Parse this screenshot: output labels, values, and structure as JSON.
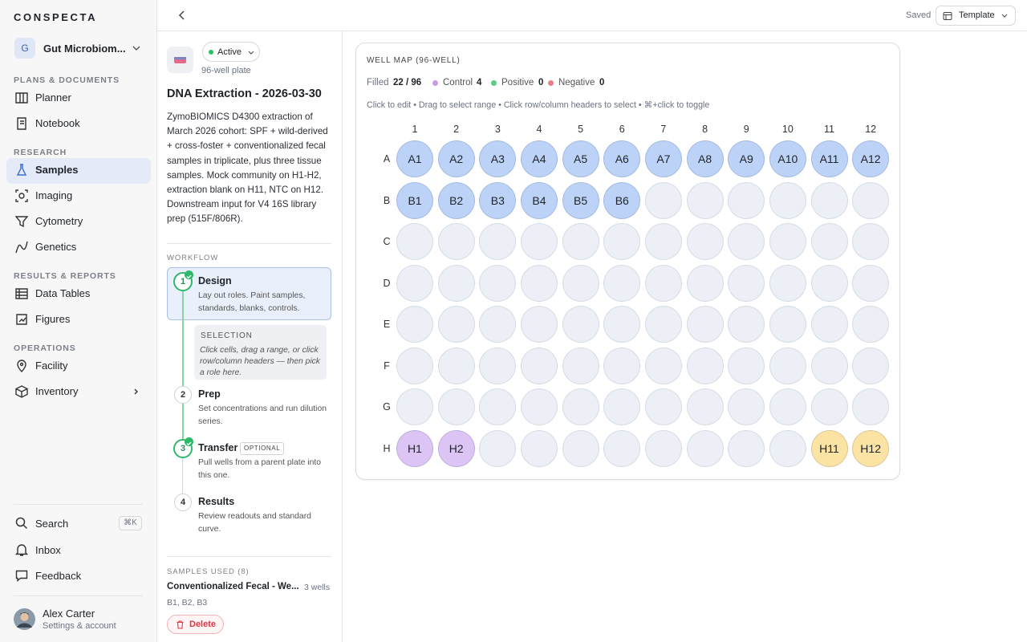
{
  "brand": "CONSPECTA",
  "workspace": {
    "initial": "G",
    "name": "Gut Microbiom..."
  },
  "nav": [
    {
      "title": "PLANS & DOCUMENTS",
      "items": [
        "Planner",
        "Notebook"
      ]
    },
    {
      "title": "RESEARCH",
      "items": [
        "Samples",
        "Imaging",
        "Cytometry",
        "Genetics"
      ]
    },
    {
      "title": "RESULTS & REPORTS",
      "items": [
        "Data Tables",
        "Figures"
      ]
    },
    {
      "title": "OPERATIONS",
      "items": [
        "Facility",
        "Inventory"
      ]
    }
  ],
  "utility": {
    "search": "Search",
    "shortcut": "⌘K",
    "inbox": "Inbox",
    "feedback": "Feedback"
  },
  "user": {
    "name": "Alex Carter",
    "subtitle": "Settings & account"
  },
  "topbar": {
    "status": "Saved",
    "template": "Template"
  },
  "experiment": {
    "status": "Active",
    "plate_type": "96-well plate",
    "title": "DNA Extraction - 2026-03-30",
    "description": "ZymoBIOMICS D4300 extraction of March 2026 cohort: SPF + wild-derived + cross-foster + conventionalized fecal samples in triplicate, plus three tissue samples. Mock community on H1-H2, extraction blank on H11, NTC on H12. Downstream input for V4 16S library prep (515F/806R).",
    "workflow_label": "WORKFLOW",
    "steps": [
      {
        "number": 1,
        "title": "Design",
        "description": "Lay out roles. Paint samples, standards, blanks, controls.",
        "done": true
      },
      {
        "number": 2,
        "title": "Prep",
        "description": "Set concentrations and run dilution series.",
        "done": false
      },
      {
        "number": 3,
        "title": "Transfer",
        "tag": "OPTIONAL",
        "description": "Pull wells from a parent plate into this one.",
        "done": true
      },
      {
        "number": 4,
        "title": "Results",
        "description": "Review readouts and standard curve.",
        "done": false
      }
    ],
    "selection": {
      "title": "SELECTION",
      "text": "Click cells, drag a range, or click row/column headers — then pick a role here."
    },
    "samples_label": "SAMPLES USED (8)",
    "samples": [
      {
        "name": "Conventionalized Fecal - We...",
        "wells_count": "3 wells",
        "wells": "B1, B2, B3"
      }
    ],
    "delete": "Delete"
  },
  "well_map": {
    "title": "WELL MAP (96-WELL)",
    "filled_label": "Filled",
    "filled": "22 / 96",
    "legend": [
      {
        "label": "Control",
        "count": 4,
        "color": "#c79be8"
      },
      {
        "label": "Positive",
        "count": 0,
        "color": "#5dcb86"
      },
      {
        "label": "Negative",
        "count": 0,
        "color": "#ee7c87"
      }
    ],
    "hint": "Click to edit • Drag to select range • Click row/column headers to select • ⌘+click to toggle",
    "columns": [
      1,
      2,
      3,
      4,
      5,
      6,
      7,
      8,
      9,
      10,
      11,
      12
    ],
    "rows": [
      "A",
      "B",
      "C",
      "D",
      "E",
      "F",
      "G",
      "H"
    ],
    "empty_color": "#eceff5",
    "wells": [
      [
        {
          "label": "A1",
          "color": "#bcd3f7"
        },
        {
          "label": "A2",
          "color": "#bcd3f7"
        },
        {
          "label": "A3",
          "color": "#bcd3f7"
        },
        {
          "label": "A4",
          "color": "#bcd3f7"
        },
        {
          "label": "A5",
          "color": "#bcd3f7"
        },
        {
          "label": "A6",
          "color": "#bcd3f7"
        },
        {
          "label": "A7",
          "color": "#bcd3f7"
        },
        {
          "label": "A8",
          "color": "#bcd3f7"
        },
        {
          "label": "A9",
          "color": "#bcd3f7"
        },
        {
          "label": "A10",
          "color": "#bcd3f7"
        },
        {
          "label": "A11",
          "color": "#bcd3f7"
        },
        {
          "label": "A12",
          "color": "#bcd3f7"
        }
      ],
      [
        {
          "label": "B1",
          "color": "#bcd3f7"
        },
        {
          "label": "B2",
          "color": "#bcd3f7"
        },
        {
          "label": "B3",
          "color": "#bcd3f7"
        },
        {
          "label": "B4",
          "color": "#bcd3f7"
        },
        {
          "label": "B5",
          "color": "#bcd3f7"
        },
        {
          "label": "B6",
          "color": "#bcd3f7"
        },
        null,
        null,
        null,
        null,
        null,
        null
      ],
      [
        null,
        null,
        null,
        null,
        null,
        null,
        null,
        null,
        null,
        null,
        null,
        null
      ],
      [
        null,
        null,
        null,
        null,
        null,
        null,
        null,
        null,
        null,
        null,
        null,
        null
      ],
      [
        null,
        null,
        null,
        null,
        null,
        null,
        null,
        null,
        null,
        null,
        null,
        null
      ],
      [
        null,
        null,
        null,
        null,
        null,
        null,
        null,
        null,
        null,
        null,
        null,
        null
      ],
      [
        null,
        null,
        null,
        null,
        null,
        null,
        null,
        null,
        null,
        null,
        null,
        null
      ],
      [
        {
          "label": "H1",
          "color": "#dcc5f5"
        },
        {
          "label": "H2",
          "color": "#dcc5f5"
        },
        null,
        null,
        null,
        null,
        null,
        null,
        null,
        null,
        {
          "label": "H11",
          "color": "#fbe3a3"
        },
        {
          "label": "H12",
          "color": "#fbe3a3"
        }
      ]
    ]
  }
}
